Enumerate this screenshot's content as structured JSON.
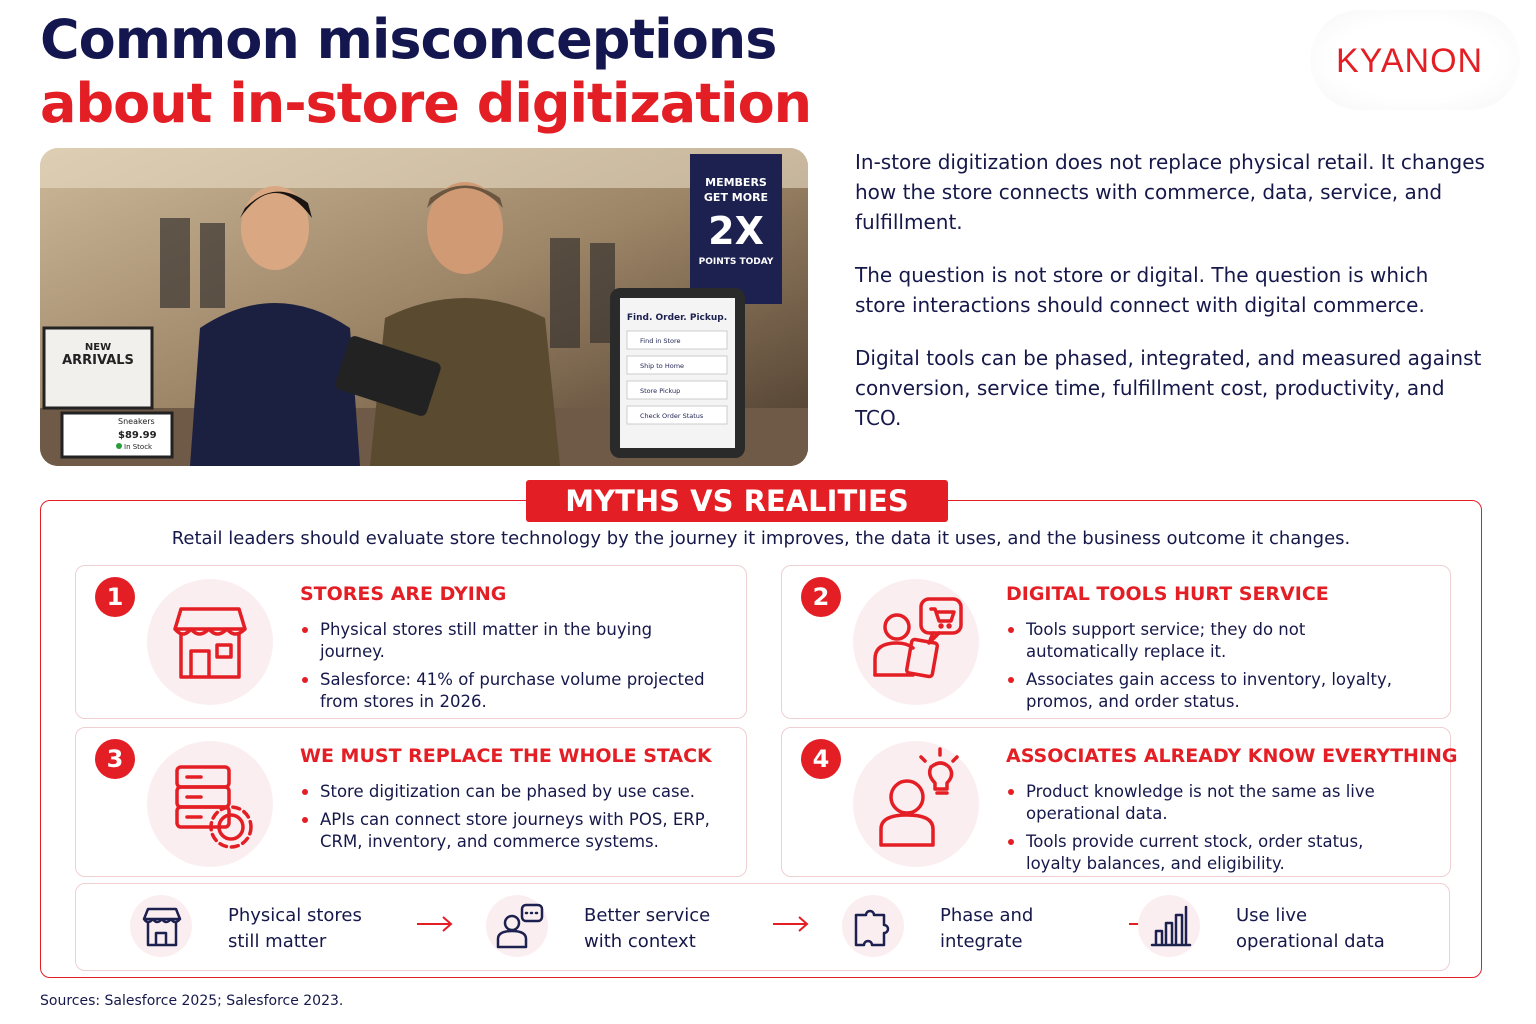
{
  "header": {
    "title_line1": "Common misconceptions",
    "title_line2": "about in-store digitization",
    "logo": "KYANON"
  },
  "photo": {
    "sign": [
      "MEMBERS",
      "GET MORE",
      "2X",
      "POINTS TODAY"
    ],
    "display": [
      "NEW",
      "ARRIVALS"
    ],
    "price_tag": [
      "Sneakers",
      "$89.99",
      "In Stock"
    ],
    "kiosk": {
      "title": "Find. Order. Pickup.",
      "buttons": [
        "Find in Store",
        "Ship to Home",
        "Store Pickup",
        "Check Order Status"
      ]
    }
  },
  "intro": [
    "In-store digitization does not replace physical retail. It changes how the store connects with commerce, data, service, and fulfillment.",
    "The question is not store or digital. The question is which store interactions should connect with digital commerce.",
    "Digital tools can be phased, integrated, and measured against conversion, service time, fulfillment cost, productivity, and TCO."
  ],
  "section": {
    "title": "MYTHS VS REALITIES",
    "subtitle": "Retail leaders should evaluate store technology by the journey it improves, the data it uses, and the business outcome it changes."
  },
  "myths": [
    {
      "number": "1",
      "title": "STORES ARE DYING",
      "points": [
        "Physical stores still matter in the buying journey.",
        "Salesforce: 41% of purchase volume projected from stores in 2026."
      ]
    },
    {
      "number": "2",
      "title": "DIGITAL TOOLS HURT SERVICE",
      "points": [
        "Tools support service; they do not automatically replace it.",
        "Associates gain access to inventory, loyalty, promos, and order status."
      ]
    },
    {
      "number": "3",
      "title": "WE MUST REPLACE THE WHOLE STACK",
      "points": [
        "Store digitization can be phased by use case.",
        "APIs can connect store journeys with POS, ERP, CRM, inventory, and commerce systems."
      ]
    },
    {
      "number": "4",
      "title": "ASSOCIATES ALREADY KNOW EVERYTHING",
      "points": [
        "Product knowledge is not the same as live operational data.",
        "Tools provide current stock, order status, loyalty balances, and eligibility."
      ]
    }
  ],
  "flow": [
    "Physical stores still matter",
    "Better service with context",
    "Phase and integrate",
    "Use live operational data"
  ],
  "sources": "Sources: Salesforce 2025; Salesforce 2023."
}
